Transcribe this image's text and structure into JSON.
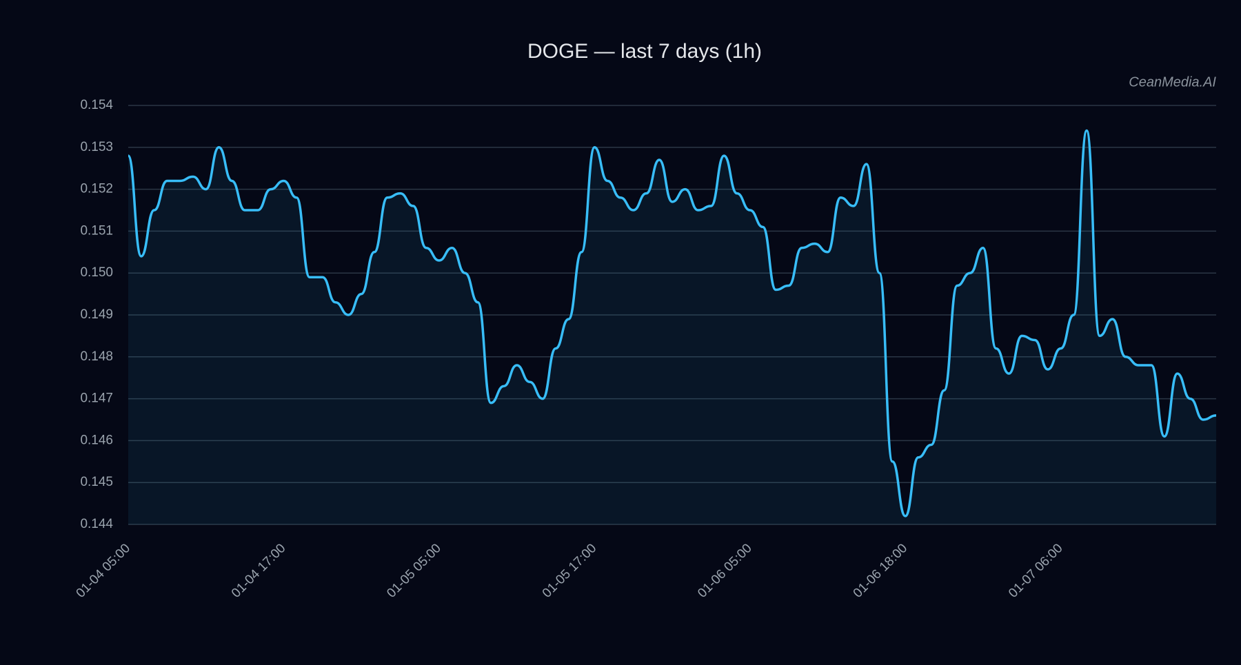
{
  "chart_data": {
    "type": "line",
    "title": "DOGE — last 7 days (1h)",
    "watermark": "CeanMedia.AI",
    "categories": [
      "01-04 05:00",
      null,
      null,
      null,
      null,
      null,
      null,
      null,
      null,
      null,
      null,
      null,
      "01-04 17:00",
      null,
      null,
      null,
      null,
      null,
      null,
      null,
      null,
      null,
      null,
      null,
      "01-05 05:00",
      null,
      null,
      null,
      null,
      null,
      null,
      null,
      null,
      null,
      null,
      null,
      "01-05 17:00",
      null,
      null,
      null,
      null,
      null,
      null,
      null,
      null,
      null,
      null,
      null,
      "01-06 05:00",
      null,
      null,
      null,
      null,
      null,
      null,
      null,
      null,
      null,
      null,
      null,
      "01-06 18:00",
      null,
      null,
      null,
      null,
      null,
      null,
      null,
      null,
      null,
      null,
      null,
      "01-07 06:00",
      null,
      null,
      null,
      null,
      null,
      null,
      null,
      null,
      null,
      null,
      null,
      null
    ],
    "series": [
      {
        "color": "#38bdf8",
        "values": [
          0.1528,
          0.1504,
          0.1515,
          0.1522,
          0.1522,
          0.1523,
          0.152,
          0.153,
          0.1522,
          0.1515,
          0.1515,
          0.152,
          0.1522,
          0.1518,
          0.1499,
          0.1499,
          0.1493,
          0.149,
          0.1495,
          0.1505,
          0.1518,
          0.1519,
          0.1516,
          0.1506,
          0.1503,
          0.1506,
          0.15,
          0.1493,
          0.1469,
          0.1473,
          0.1478,
          0.1474,
          0.147,
          0.1482,
          0.1489,
          0.1505,
          0.153,
          0.1522,
          0.1518,
          0.1515,
          0.1519,
          0.1527,
          0.1517,
          0.152,
          0.1515,
          0.1516,
          0.1528,
          0.1519,
          0.1515,
          0.1511,
          0.1496,
          0.1497,
          0.1506,
          0.1507,
          0.1505,
          0.1518,
          0.1516,
          0.1526,
          0.15,
          0.1455,
          0.1442,
          0.1456,
          0.1459,
          0.1472,
          0.1497,
          0.15,
          0.1506,
          0.1482,
          0.1476,
          0.1485,
          0.1484,
          0.1477,
          0.1482,
          0.149,
          0.1534,
          0.1485,
          0.1489,
          0.148,
          0.1478,
          0.1478,
          0.1461,
          0.1476,
          0.147,
          0.1465,
          0.1466
        ]
      }
    ],
    "ylim": [
      0.144,
      0.154
    ],
    "yticks": [
      0.144,
      0.145,
      0.146,
      0.147,
      0.148,
      0.149,
      {
        "value": 0.15,
        "label": "0.150"
      },
      0.151,
      0.152,
      0.153,
      0.154
    ],
    "grid": true,
    "area": true
  }
}
